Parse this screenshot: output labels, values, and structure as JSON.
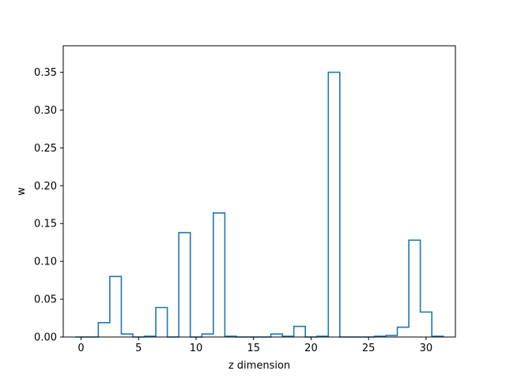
{
  "chart_data": {
    "type": "bar",
    "style": "step",
    "title": "",
    "xlabel": "z dimension",
    "ylabel": "w",
    "xlim": [
      -1.55,
      32.55
    ],
    "ylim": [
      0,
      0.385
    ],
    "x_ticks": [
      0,
      5,
      10,
      15,
      20,
      25,
      30
    ],
    "x_tick_labels": [
      "0",
      "5",
      "10",
      "15",
      "20",
      "25",
      "30"
    ],
    "y_ticks": [
      0.0,
      0.05,
      0.1,
      0.15,
      0.2,
      0.25,
      0.3,
      0.35
    ],
    "y_tick_labels": [
      "0.00",
      "0.05",
      "0.10",
      "0.15",
      "0.20",
      "0.25",
      "0.30",
      "0.35"
    ],
    "grid": false,
    "legend": "none",
    "categories": [
      0,
      1,
      2,
      3,
      4,
      5,
      6,
      7,
      8,
      9,
      10,
      11,
      12,
      13,
      14,
      15,
      16,
      17,
      18,
      19,
      20,
      21,
      22,
      23,
      24,
      25,
      26,
      27,
      28,
      29,
      30,
      31
    ],
    "values": [
      0.0,
      0.0,
      0.019,
      0.08,
      0.004,
      0.0,
      0.001,
      0.039,
      0.0,
      0.138,
      0.0,
      0.004,
      0.164,
      0.001,
      0.0,
      0.0,
      0.0,
      0.004,
      0.001,
      0.014,
      0.0,
      0.001,
      0.35,
      0.0,
      0.0,
      0.0,
      0.001,
      0.002,
      0.013,
      0.128,
      0.033,
      0.001
    ],
    "line_color": "#1f77b4"
  }
}
